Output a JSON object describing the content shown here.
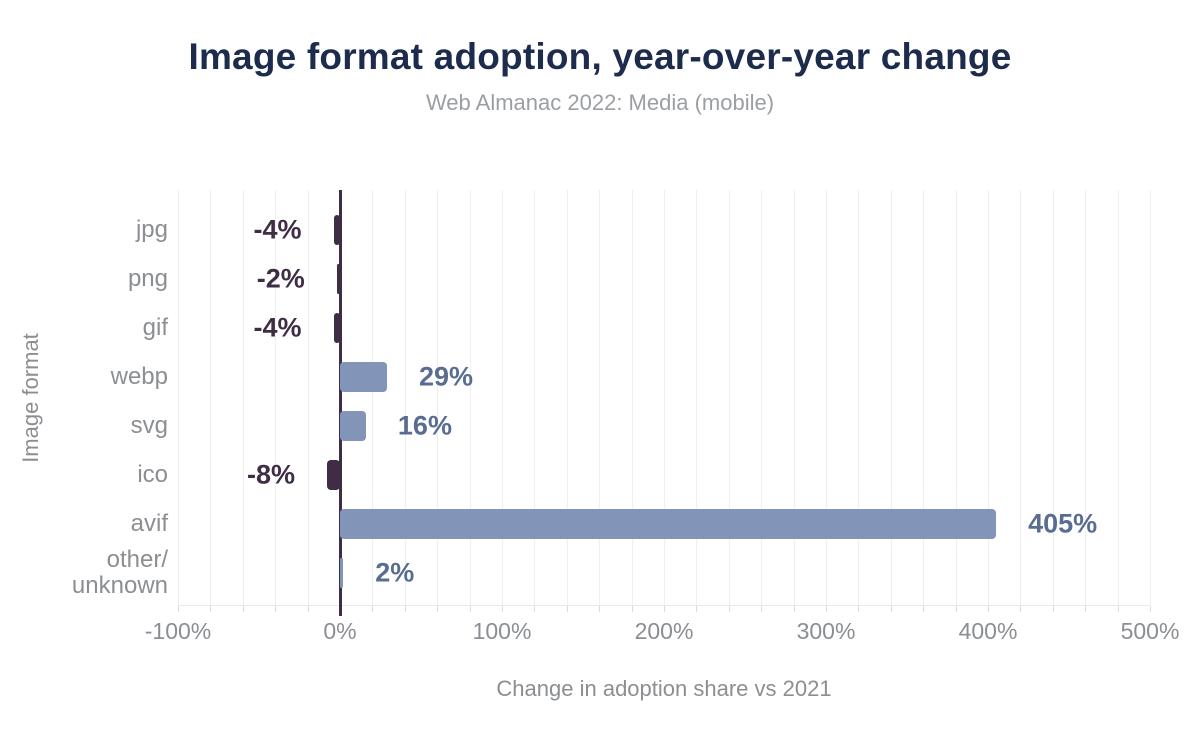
{
  "chart_data": {
    "type": "bar",
    "orientation": "horizontal",
    "title": "Image format adoption, year-over-year change",
    "subtitle": "Web Almanac 2022: Media (mobile)",
    "xlabel": "Change in adoption share vs 2021",
    "ylabel": "Image format",
    "categories": [
      "jpg",
      "png",
      "gif",
      "webp",
      "svg",
      "ico",
      "avif",
      "other/unknown"
    ],
    "category_display": [
      "jpg",
      "png",
      "gif",
      "webp",
      "svg",
      "ico",
      "avif",
      "other/\nunknown"
    ],
    "values": [
      -4,
      -2,
      -4,
      29,
      16,
      -8,
      405,
      2
    ],
    "data_labels": [
      "-4%",
      "-2%",
      "-4%",
      "29%",
      "16%",
      "-8%",
      "405%",
      "2%"
    ],
    "xlim": [
      -100,
      500
    ],
    "x_ticks": [
      -100,
      0,
      100,
      200,
      300,
      400,
      500
    ],
    "x_tick_labels": [
      "-100%",
      "0%",
      "100%",
      "200%",
      "300%",
      "400%",
      "500%"
    ],
    "minor_grid_step_pct": 20,
    "grid": "vertical minor gridlines only",
    "legend": "none",
    "colors": {
      "positive_bar": "#8295b9",
      "negative_bar": "#3e2d44",
      "positive_label": "#596c92",
      "negative_label": "#3e2d44",
      "zero_line": "#3e2d44",
      "title": "#1d2b4d",
      "subtitle": "#9b9ea3",
      "axis_text": "#8b8e92",
      "gridline": "#efefef",
      "baseline": "#e9e9e9",
      "tick": "#dcdcdc"
    }
  }
}
